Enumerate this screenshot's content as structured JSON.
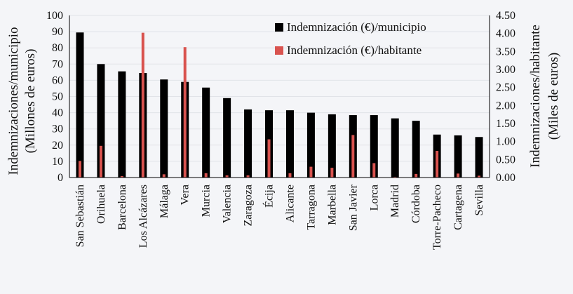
{
  "chart_data": {
    "type": "bar",
    "categories": [
      "San Sebastián",
      "Orihuela",
      "Barcelona",
      "Los Alcázares",
      "Málaga",
      "Vera",
      "Murcia",
      "Valencia",
      "Zaragoza",
      "Écija",
      "Alicante",
      "Tarragona",
      "Marbella",
      "San Javier",
      "Lorca",
      "Madrid",
      "Córdoba",
      "Torre-Pacheco",
      "Cartagena",
      "Sevilla"
    ],
    "series": [
      {
        "name": "Indemnización (€)/municipio",
        "axis": "left",
        "color": "#000000",
        "values": [
          89.5,
          70.0,
          65.5,
          64.5,
          60.5,
          59.0,
          55.5,
          49.0,
          42.0,
          41.5,
          41.5,
          40.0,
          39.0,
          38.5,
          38.5,
          36.5,
          35.0,
          26.5,
          26.0,
          25.0
        ]
      },
      {
        "name": "Indemnización (€)/habitante",
        "axis": "right",
        "color": "#d9534f",
        "values": [
          0.46,
          0.88,
          0.04,
          4.02,
          0.09,
          3.62,
          0.12,
          0.06,
          0.06,
          1.06,
          0.12,
          0.3,
          0.27,
          1.18,
          0.4,
          0.02,
          0.1,
          0.74,
          0.11,
          0.05
        ]
      }
    ],
    "ylabel": [
      "Indemnizaciones/municipio",
      "(Millones de euros)"
    ],
    "ylabel2": [
      "Indemnizaciones/habitante",
      "(Miles de euros)"
    ],
    "ylim": [
      0,
      100
    ],
    "y2lim": [
      0,
      4.5
    ],
    "yticks": [
      "0",
      "10",
      "20",
      "30",
      "40",
      "50",
      "60",
      "70",
      "80",
      "90",
      "100"
    ],
    "y2ticks": [
      "0.00",
      "0.50",
      "1.00",
      "1.50",
      "2.00",
      "2.50",
      "3.00",
      "3.50",
      "4.00",
      "4.50"
    ],
    "grid": true,
    "legend_position": "top-right"
  }
}
